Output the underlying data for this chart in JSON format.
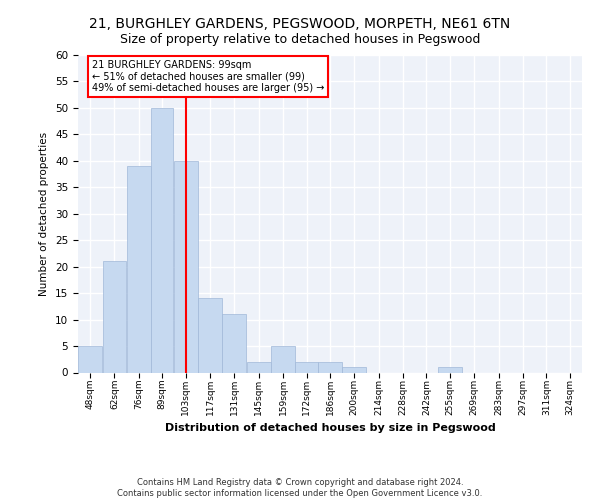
{
  "title": "21, BURGHLEY GARDENS, PEGSWOOD, MORPETH, NE61 6TN",
  "subtitle": "Size of property relative to detached houses in Pegswood",
  "xlabel": "Distribution of detached houses by size in Pegswood",
  "ylabel": "Number of detached properties",
  "bar_labels": [
    "48sqm",
    "62sqm",
    "76sqm",
    "89sqm",
    "103sqm",
    "117sqm",
    "131sqm",
    "145sqm",
    "159sqm",
    "172sqm",
    "186sqm",
    "200sqm",
    "214sqm",
    "228sqm",
    "242sqm",
    "255sqm",
    "269sqm",
    "283sqm",
    "297sqm",
    "311sqm",
    "324sqm"
  ],
  "bar_values": [
    5,
    21,
    39,
    50,
    40,
    14,
    11,
    2,
    5,
    2,
    2,
    1,
    0,
    0,
    0,
    1,
    0,
    0,
    0,
    0,
    0
  ],
  "bar_color": "#c6d9f0",
  "bar_edge_color": "#a0b8d8",
  "property_line_x": 103,
  "annotation_text": "21 BURGHLEY GARDENS: 99sqm\n← 51% of detached houses are smaller (99)\n49% of semi-detached houses are larger (95) →",
  "annotation_box_color": "white",
  "annotation_box_edge_color": "red",
  "vline_color": "red",
  "ylim": [
    0,
    60
  ],
  "yticks": [
    0,
    5,
    10,
    15,
    20,
    25,
    30,
    35,
    40,
    45,
    50,
    55,
    60
  ],
  "footnote": "Contains HM Land Registry data © Crown copyright and database right 2024.\nContains public sector information licensed under the Open Government Licence v3.0.",
  "bg_color": "#eef2f9",
  "grid_color": "white",
  "title_fontsize": 10,
  "subtitle_fontsize": 9,
  "bin_edges": [
    41,
    55,
    69,
    83,
    96,
    110,
    124,
    138,
    152,
    166,
    179,
    193,
    207,
    221,
    235,
    248,
    262,
    276,
    290,
    304,
    317,
    331
  ]
}
